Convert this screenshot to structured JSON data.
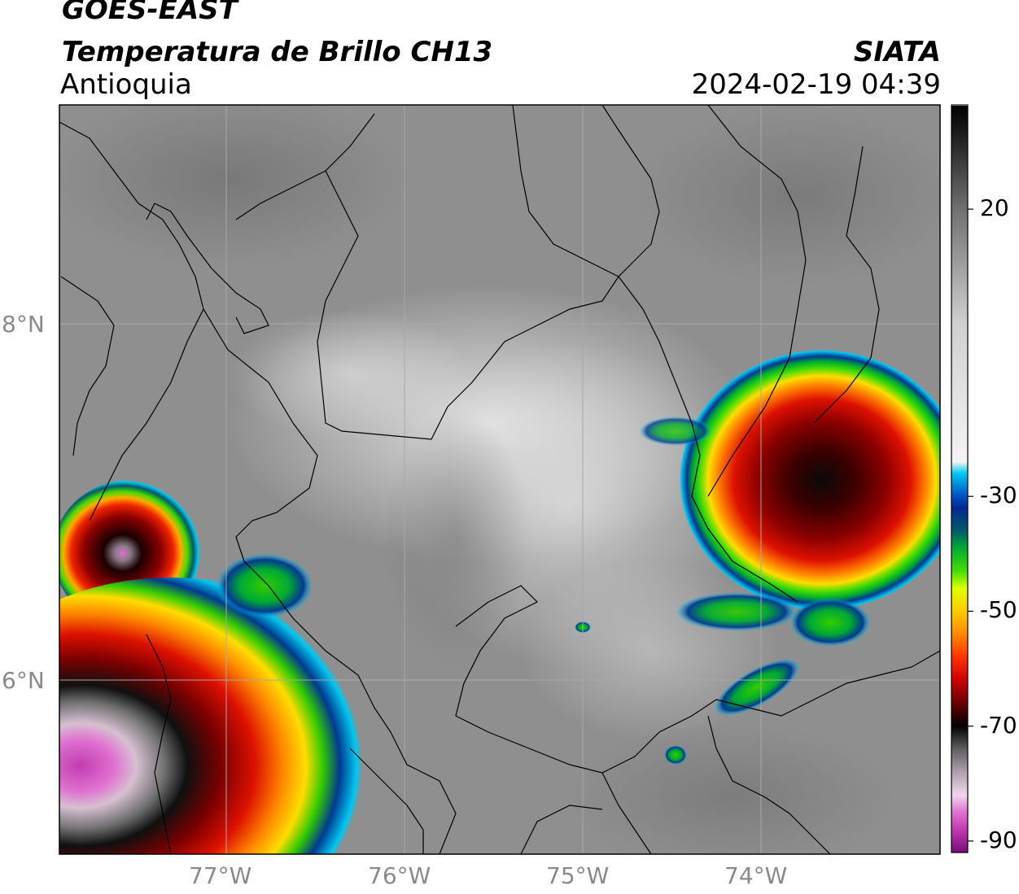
{
  "header": {
    "satellite": "GOES-EAST",
    "product": "Temperatura de Brillo CH13",
    "region": "Antioquia",
    "organization": "SIATA",
    "timestamp": "2024-02-19 04:39"
  },
  "map": {
    "lon_ticks": [
      "77°W",
      "76°W",
      "75°W",
      "74°W"
    ],
    "lat_ticks": [
      "8°N",
      "6°N"
    ],
    "lon_range": [
      -77.95,
      -73.0
    ],
    "lat_range": [
      5.0,
      9.2
    ],
    "grid": true,
    "colors": {
      "background_gray": "#8f8f8f",
      "border_lines": "#000000",
      "gridlines": "#a8a8a8"
    },
    "cold_cloud_regions": [
      {
        "name": "northeast-storm",
        "center_lon": -73.55,
        "center_lat": 7.5,
        "min_temp": -72
      },
      {
        "name": "west-cell",
        "center_lon": -77.55,
        "center_lat": 6.9,
        "min_temp": -85
      },
      {
        "name": "southwest-complex",
        "center_lon": -77.6,
        "center_lat": 5.65,
        "min_temp": -88
      }
    ]
  },
  "colorbar": {
    "labels": [
      "20",
      "-30",
      "-50",
      "-70",
      "-90"
    ],
    "values": [
      20,
      -30,
      -50,
      -70,
      -90
    ],
    "range": [
      -92,
      38
    ],
    "stops": [
      {
        "t": -92,
        "c": "#7a0a7a"
      },
      {
        "t": -88,
        "c": "#c03cb0"
      },
      {
        "t": -85,
        "c": "#e070d0"
      },
      {
        "t": -82,
        "c": "#f2d6ec"
      },
      {
        "t": -78,
        "c": "#b0a0ac"
      },
      {
        "t": -74,
        "c": "#606060"
      },
      {
        "t": -70,
        "c": "#000000"
      },
      {
        "t": -66,
        "c": "#6a0000"
      },
      {
        "t": -62,
        "c": "#cc0000"
      },
      {
        "t": -58,
        "c": "#ff3300"
      },
      {
        "t": -54,
        "c": "#ff8800"
      },
      {
        "t": -50,
        "c": "#ffcc00"
      },
      {
        "t": -46,
        "c": "#ddff00"
      },
      {
        "t": -43,
        "c": "#44dd00"
      },
      {
        "t": -39,
        "c": "#00aa33"
      },
      {
        "t": -36,
        "c": "#005a6a"
      },
      {
        "t": -32,
        "c": "#002a90"
      },
      {
        "t": -30,
        "c": "#0050c0"
      },
      {
        "t": -26,
        "c": "#00c8f0"
      },
      {
        "t": -24,
        "c": "#f4f4f4"
      },
      {
        "t": 0,
        "c": "#d0d0d0"
      },
      {
        "t": 20,
        "c": "#707070"
      },
      {
        "t": 30,
        "c": "#303030"
      },
      {
        "t": 38,
        "c": "#000000"
      }
    ]
  }
}
